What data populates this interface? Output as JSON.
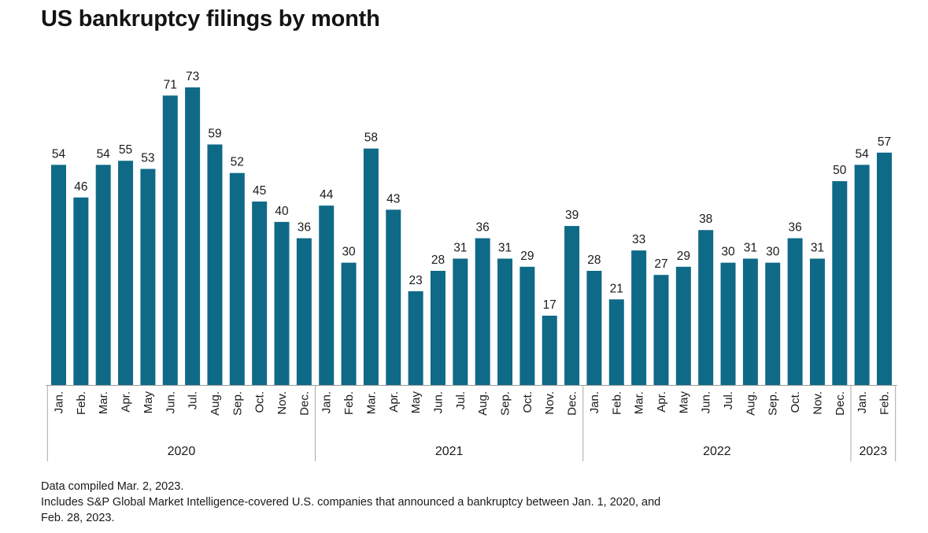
{
  "title": "US bankruptcy filings by month",
  "chart_data": {
    "type": "bar",
    "title": "US bankruptcy filings by month",
    "categories": [
      "Jan.",
      "Feb.",
      "Mar.",
      "Apr.",
      "May",
      "Jun.",
      "Jul.",
      "Aug.",
      "Sep.",
      "Oct.",
      "Nov.",
      "Dec.",
      "Jan.",
      "Feb.",
      "Mar.",
      "Apr.",
      "May",
      "Jun.",
      "Jul.",
      "Aug.",
      "Sep.",
      "Oct.",
      "Nov.",
      "Dec.",
      "Jan.",
      "Feb.",
      "Mar.",
      "Apr.",
      "May",
      "Jun.",
      "Jul.",
      "Aug.",
      "Sep.",
      "Oct.",
      "Nov.",
      "Dec.",
      "Jan.",
      "Feb."
    ],
    "values": [
      54,
      46,
      54,
      55,
      53,
      71,
      73,
      59,
      52,
      45,
      40,
      36,
      44,
      30,
      58,
      43,
      23,
      28,
      31,
      36,
      31,
      29,
      17,
      39,
      28,
      21,
      33,
      27,
      29,
      38,
      30,
      31,
      30,
      36,
      31,
      50,
      54,
      57
    ],
    "year_groups": [
      {
        "label": "2020",
        "count": 12
      },
      {
        "label": "2021",
        "count": 12
      },
      {
        "label": "2022",
        "count": 12
      },
      {
        "label": "2023",
        "count": 2
      }
    ],
    "ylim": [
      0,
      73
    ],
    "bar_color": "#0f6a87",
    "grid": false,
    "data_labels": true
  },
  "notes": [
    "Data compiled Mar. 2, 2023.",
    "Includes S&P Global Market Intelligence-covered U.S. companies that announced a bankruptcy between Jan. 1, 2020, and",
    "Feb. 28, 2023."
  ]
}
